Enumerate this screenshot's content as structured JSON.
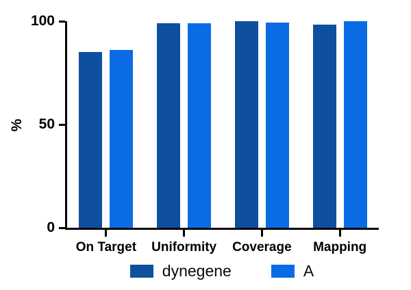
{
  "colors": {
    "series1": "#0e509e",
    "series2": "#0a6ce4",
    "axis": "#000000",
    "background": "#ffffff"
  },
  "chart_data": {
    "type": "bar",
    "title": "",
    "xlabel": "",
    "ylabel": "%",
    "categories": [
      "On Target",
      "Uniformity",
      "Coverage",
      "Mapping"
    ],
    "series": [
      {
        "name": "dynegene",
        "color": "#0e509e",
        "values": [
          85,
          99,
          100,
          98.5
        ]
      },
      {
        "name": "A",
        "color": "#0a6ce4",
        "values": [
          86,
          99,
          99.5,
          100
        ]
      }
    ],
    "ylim": [
      0,
      100
    ],
    "yticks": [
      0,
      50,
      100
    ],
    "grid": false,
    "legend_position": "bottom"
  }
}
